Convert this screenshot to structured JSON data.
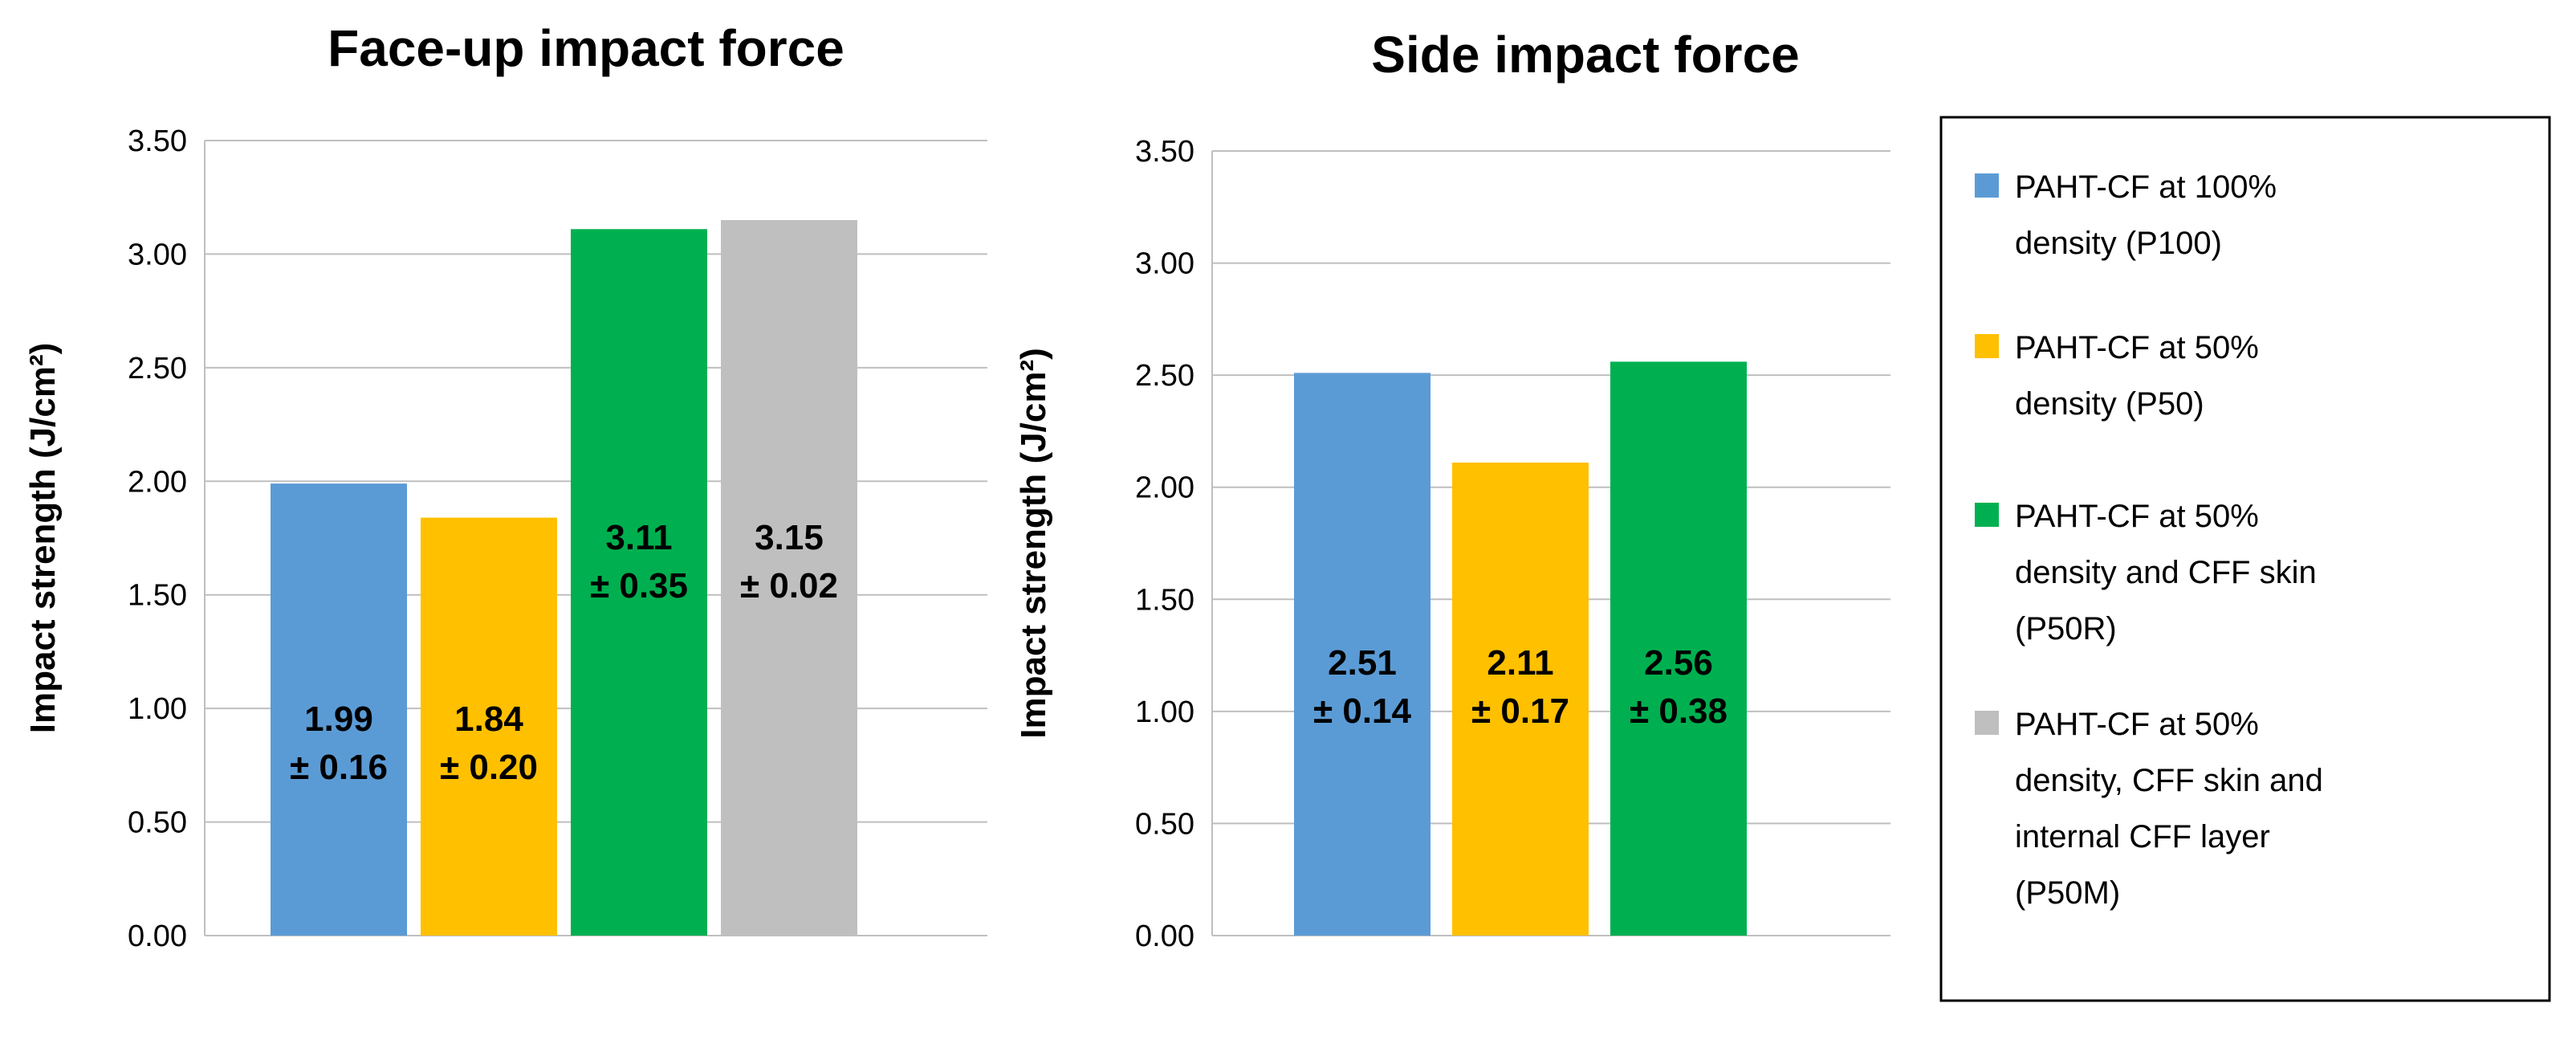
{
  "chart_data": [
    {
      "type": "bar",
      "title": "Face-up impact force",
      "ylabel": "Impact strength (J/cm²)",
      "ylim": [
        0,
        3.5
      ],
      "yticks": [
        "0.00",
        "0.50",
        "1.00",
        "1.50",
        "2.00",
        "2.50",
        "3.00",
        "3.50"
      ],
      "grid": true,
      "bars": [
        {
          "series": "P100",
          "value": 1.99,
          "label_main": "1.99",
          "label_sd": "± 0.16"
        },
        {
          "series": "P50",
          "value": 1.84,
          "label_main": "1.84",
          "label_sd": "± 0.20"
        },
        {
          "series": "P50R",
          "value": 3.11,
          "label_main": "3.11",
          "label_sd": "± 0.35"
        },
        {
          "series": "P50M",
          "value": 3.15,
          "label_main": "3.15",
          "label_sd": "± 0.02"
        }
      ]
    },
    {
      "type": "bar",
      "title": "Side impact force",
      "ylabel": "Impact strength (J/cm²)",
      "ylim": [
        0,
        3.5
      ],
      "yticks": [
        "0.00",
        "0.50",
        "1.00",
        "1.50",
        "2.00",
        "2.50",
        "3.00",
        "3.50"
      ],
      "grid": true,
      "bars": [
        {
          "series": "P100",
          "value": 2.51,
          "label_main": "2.51",
          "label_sd": "± 0.14"
        },
        {
          "series": "P50",
          "value": 2.11,
          "label_main": "2.11",
          "label_sd": "± 0.17"
        },
        {
          "series": "P50R",
          "value": 2.56,
          "label_main": "2.56",
          "label_sd": "± 0.38"
        }
      ]
    }
  ],
  "legend": {
    "placement": "right",
    "items": [
      {
        "key": "P100",
        "color": "#5B9BD5",
        "lines": [
          "PAHT-CF at 100%",
          "density (P100)"
        ]
      },
      {
        "key": "P50",
        "color": "#FFC000",
        "lines": [
          "PAHT-CF at 50%",
          "density (P50)"
        ]
      },
      {
        "key": "P50R",
        "color": "#00B050",
        "lines": [
          "PAHT-CF at 50%",
          "density and CFF skin",
          "(P50R)"
        ]
      },
      {
        "key": "P50M",
        "color": "#BFBFBF",
        "lines": [
          "PAHT-CF at 50%",
          "density, CFF skin and",
          "internal CFF layer",
          "(P50M)"
        ]
      }
    ]
  }
}
